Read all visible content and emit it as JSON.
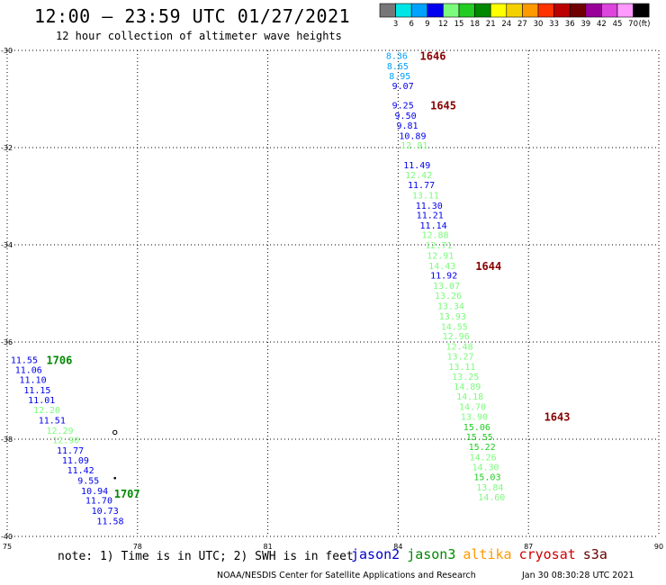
{
  "header": {
    "title": "12:00 – 23:59 UTC 01/27/2021",
    "subtitle": "12 hour collection of altimeter wave heights"
  },
  "color_scale": {
    "labels": [
      "3",
      "6",
      "9",
      "12",
      "15",
      "18",
      "21",
      "24",
      "27",
      "30",
      "33",
      "36",
      "39",
      "42",
      "45",
      "70"
    ],
    "unit": "(ft)",
    "colors": [
      "#777777",
      "#00e5e5",
      "#00a2ff",
      "#0000ee",
      "#7cfc7c",
      "#22cc22",
      "#008800",
      "#ffff00",
      "#f5d000",
      "#ff9900",
      "#ff3300",
      "#bb0000",
      "#700000",
      "#990099",
      "#dd44dd",
      "#ff99ff",
      "#000000"
    ]
  },
  "chart_data": {
    "type": "scatter",
    "title": "12:00 – 23:59 UTC 01/27/2021",
    "subtitle": "12 hour collection of altimeter wave heights",
    "xlabel": "",
    "ylabel": "",
    "xlim": [
      75,
      90
    ],
    "ylim": [
      -40,
      -30
    ],
    "x_ticks": [
      "75",
      "78",
      "81",
      "84",
      "87",
      "90"
    ],
    "y_ticks": [
      "-30",
      "-32",
      "-34",
      "-36",
      "-38",
      "-40"
    ],
    "grid": true,
    "tracks": [
      {
        "points": [
          {
            "lon": 83.72,
            "lat": -30.12,
            "value": "8.36",
            "color": "#00a2ff"
          },
          {
            "lon": 83.74,
            "lat": -30.33,
            "value": "8.65",
            "color": "#00a2ff"
          },
          {
            "lon": 83.79,
            "lat": -30.54,
            "value": "8.95",
            "color": "#00a2ff"
          },
          {
            "lon": 83.86,
            "lat": -30.74,
            "value": "9.07",
            "color": "#0000ee"
          },
          {
            "lon": 83.86,
            "lat": -31.14,
            "value": "9.25",
            "color": "#0000ee"
          },
          {
            "lon": 83.92,
            "lat": -31.35,
            "value": "9.50",
            "color": "#0000ee"
          },
          {
            "lon": 83.96,
            "lat": -31.56,
            "value": "9.81",
            "color": "#0000ee"
          },
          {
            "lon": 84.02,
            "lat": -31.77,
            "value": "10.89",
            "color": "#0000ee"
          },
          {
            "lon": 84.06,
            "lat": -31.96,
            "value": "12.91",
            "color": "#7cfc7c"
          },
          {
            "lon": 84.12,
            "lat": -32.37,
            "value": "11.49",
            "color": "#0000ee"
          },
          {
            "lon": 84.16,
            "lat": -32.57,
            "value": "12.42",
            "color": "#7cfc7c"
          },
          {
            "lon": 84.22,
            "lat": -32.78,
            "value": "11.77",
            "color": "#0000ee"
          },
          {
            "lon": 84.32,
            "lat": -32.99,
            "value": "13.11",
            "color": "#7cfc7c"
          },
          {
            "lon": 84.4,
            "lat": -33.2,
            "value": "11.30",
            "color": "#0000ee"
          },
          {
            "lon": 84.42,
            "lat": -33.4,
            "value": "11.21",
            "color": "#0000ee"
          },
          {
            "lon": 84.5,
            "lat": -33.61,
            "value": "11.14",
            "color": "#0000ee"
          },
          {
            "lon": 84.54,
            "lat": -33.81,
            "value": "12.88",
            "color": "#7cfc7c"
          },
          {
            "lon": 84.62,
            "lat": -34.02,
            "value": "12.71",
            "color": "#7cfc7c"
          },
          {
            "lon": 84.66,
            "lat": -34.23,
            "value": "12.91",
            "color": "#7cfc7c"
          },
          {
            "lon": 84.7,
            "lat": -34.44,
            "value": "14.43",
            "color": "#7cfc7c"
          },
          {
            "lon": 84.74,
            "lat": -34.64,
            "value": "11.92",
            "color": "#0000ee"
          },
          {
            "lon": 84.8,
            "lat": -34.85,
            "value": "13.07",
            "color": "#7cfc7c"
          },
          {
            "lon": 84.84,
            "lat": -35.06,
            "value": "13.26",
            "color": "#7cfc7c"
          },
          {
            "lon": 84.9,
            "lat": -35.27,
            "value": "13.34",
            "color": "#7cfc7c"
          },
          {
            "lon": 84.94,
            "lat": -35.48,
            "value": "13.93",
            "color": "#7cfc7c"
          },
          {
            "lon": 84.98,
            "lat": -35.69,
            "value": "14.55",
            "color": "#7cfc7c"
          },
          {
            "lon": 85.02,
            "lat": -35.89,
            "value": "12.96",
            "color": "#7cfc7c"
          },
          {
            "lon": 85.1,
            "lat": -36.1,
            "value": "12.48",
            "color": "#7cfc7c"
          },
          {
            "lon": 85.12,
            "lat": -36.31,
            "value": "13.27",
            "color": "#7cfc7c"
          },
          {
            "lon": 85.16,
            "lat": -36.52,
            "value": "13.11",
            "color": "#7cfc7c"
          },
          {
            "lon": 85.24,
            "lat": -36.72,
            "value": "13.25",
            "color": "#7cfc7c"
          },
          {
            "lon": 85.28,
            "lat": -36.93,
            "value": "14.89",
            "color": "#7cfc7c"
          },
          {
            "lon": 85.34,
            "lat": -37.13,
            "value": "14.18",
            "color": "#7cfc7c"
          },
          {
            "lon": 85.4,
            "lat": -37.34,
            "value": "14.70",
            "color": "#7cfc7c"
          },
          {
            "lon": 85.44,
            "lat": -37.55,
            "value": "13.90",
            "color": "#7cfc7c"
          },
          {
            "lon": 85.5,
            "lat": -37.76,
            "value": "15.06",
            "color": "#22cc22"
          },
          {
            "lon": 85.56,
            "lat": -37.96,
            "value": "15.55",
            "color": "#22cc22"
          },
          {
            "lon": 85.62,
            "lat": -38.17,
            "value": "15.22",
            "color": "#22cc22"
          },
          {
            "lon": 85.64,
            "lat": -38.38,
            "value": "14.26",
            "color": "#7cfc7c"
          },
          {
            "lon": 85.7,
            "lat": -38.58,
            "value": "14.30",
            "color": "#7cfc7c"
          },
          {
            "lon": 85.74,
            "lat": -38.79,
            "value": "15.03",
            "color": "#22cc22"
          },
          {
            "lon": 85.8,
            "lat": -39.0,
            "value": "13.84",
            "color": "#7cfc7c"
          },
          {
            "lon": 85.84,
            "lat": -39.2,
            "value": "14.60",
            "color": "#7cfc7c"
          }
        ],
        "times": [
          {
            "lon": 84.5,
            "lat": -30.12,
            "value": "1646"
          },
          {
            "lon": 84.74,
            "lat": -31.14,
            "value": "1645"
          },
          {
            "lon": 85.78,
            "lat": -34.44,
            "value": "1644"
          },
          {
            "lon": 87.36,
            "lat": -37.55,
            "value": "1643"
          }
        ]
      },
      {
        "points": [
          {
            "lon": 75.08,
            "lat": -36.38,
            "value": "11.55",
            "color": "#0000ee"
          },
          {
            "lon": 75.18,
            "lat": -36.58,
            "value": "11.06",
            "color": "#0000ee"
          },
          {
            "lon": 75.28,
            "lat": -36.79,
            "value": "11.10",
            "color": "#0000ee"
          },
          {
            "lon": 75.38,
            "lat": -37.0,
            "value": "11.15",
            "color": "#0000ee"
          },
          {
            "lon": 75.48,
            "lat": -37.2,
            "value": "11.01",
            "color": "#0000ee"
          },
          {
            "lon": 75.6,
            "lat": -37.41,
            "value": "12.20",
            "color": "#7cfc7c"
          },
          {
            "lon": 75.72,
            "lat": -37.62,
            "value": "11.51",
            "color": "#0000ee"
          },
          {
            "lon": 75.9,
            "lat": -37.83,
            "value": "12.29",
            "color": "#7cfc7c"
          },
          {
            "lon": 76.04,
            "lat": -38.03,
            "value": "12.90",
            "color": "#7cfc7c"
          },
          {
            "lon": 76.14,
            "lat": -38.24,
            "value": "11.77",
            "color": "#0000ee"
          },
          {
            "lon": 76.26,
            "lat": -38.44,
            "value": "11.09",
            "color": "#0000ee"
          },
          {
            "lon": 76.38,
            "lat": -38.65,
            "value": "11.42",
            "color": "#0000ee"
          },
          {
            "lon": 76.62,
            "lat": -38.86,
            "value": "9.55",
            "color": "#0000ee"
          },
          {
            "lon": 76.7,
            "lat": -39.07,
            "value": "10.94",
            "color": "#0000ee"
          },
          {
            "lon": 76.8,
            "lat": -39.27,
            "value": "11.70",
            "color": "#0000ee"
          },
          {
            "lon": 76.94,
            "lat": -39.48,
            "value": "10.73",
            "color": "#0000ee"
          },
          {
            "lon": 77.06,
            "lat": -39.69,
            "value": "11.58",
            "color": "#0000ee"
          }
        ],
        "times": [
          {
            "lon": 75.9,
            "lat": -36.38,
            "value": "1706"
          },
          {
            "lon": 77.46,
            "lat": -39.13,
            "value": "1707"
          }
        ]
      }
    ],
    "markers": [
      {
        "lon": 77.48,
        "lat": -37.86,
        "symbol": "ring"
      },
      {
        "lon": 77.48,
        "lat": -38.8,
        "symbol": "dot"
      }
    ]
  },
  "footer": {
    "note": "note:  1) Time is in UTC;  2) SWH is in feet",
    "satellites": [
      {
        "name": "jason2",
        "color": "#0000cc"
      },
      {
        "name": "jason3",
        "color": "#008800"
      },
      {
        "name": "altika",
        "color": "#ff9900"
      },
      {
        "name": "cryosat",
        "color": "#cc0000"
      },
      {
        "name": "s3a",
        "color": "#660000"
      }
    ],
    "credit": "NOAA/NESDIS Center for Satellite Applications and Research",
    "timestamp": "Jan 30 08:30:28 UTC 2021"
  }
}
